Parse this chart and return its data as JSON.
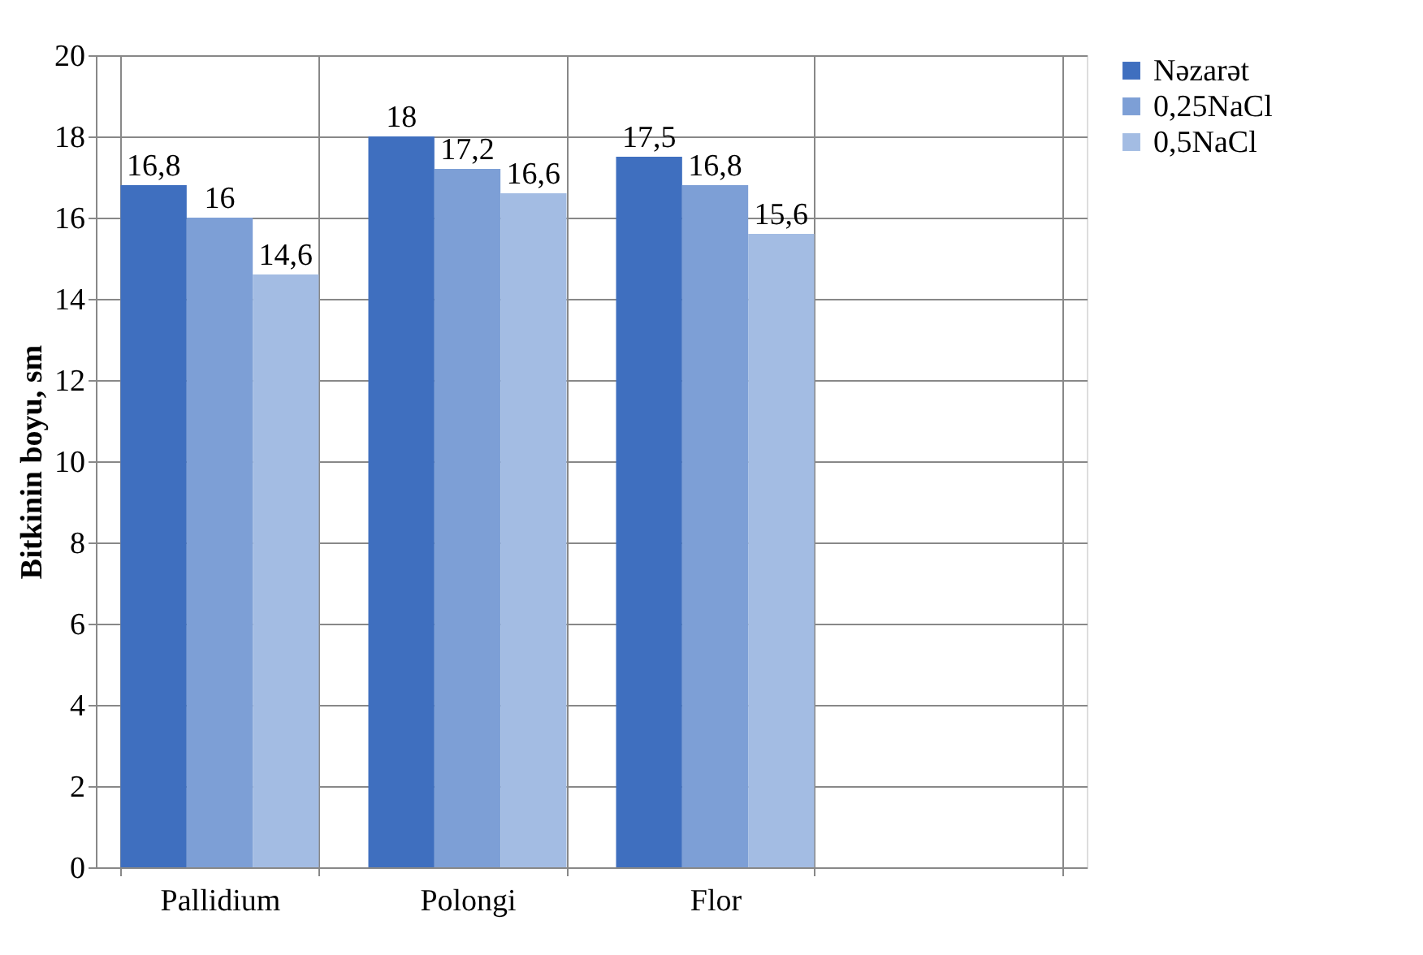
{
  "chart_data": {
    "type": "bar",
    "ylabel": "Bitkinin boyu, sm",
    "categories": [
      "Pallidium",
      "Polongi",
      "Flor",
      null
    ],
    "series": [
      {
        "name": "Nəzarət",
        "color": "#3f6fbf",
        "values": [
          16.8,
          18,
          17.5,
          null
        ],
        "value_labels": [
          "16,8",
          "18",
          "17,5",
          null
        ]
      },
      {
        "name": "0,25NaCl",
        "color": "#7d9fd6",
        "values": [
          16,
          17.2,
          16.8,
          null
        ],
        "value_labels": [
          "16",
          "17,2",
          "16,8",
          null
        ]
      },
      {
        "name": "0,5NaCl",
        "color": "#a3bce3",
        "values": [
          14.6,
          16.6,
          15.6,
          null
        ],
        "value_labels": [
          "14,6",
          "16,6",
          "15,6",
          null
        ]
      }
    ],
    "ylim": [
      0,
      20
    ],
    "yticks": [
      0,
      2,
      4,
      6,
      8,
      10,
      12,
      14,
      16,
      18,
      20
    ],
    "grid": true,
    "legend": "right"
  }
}
